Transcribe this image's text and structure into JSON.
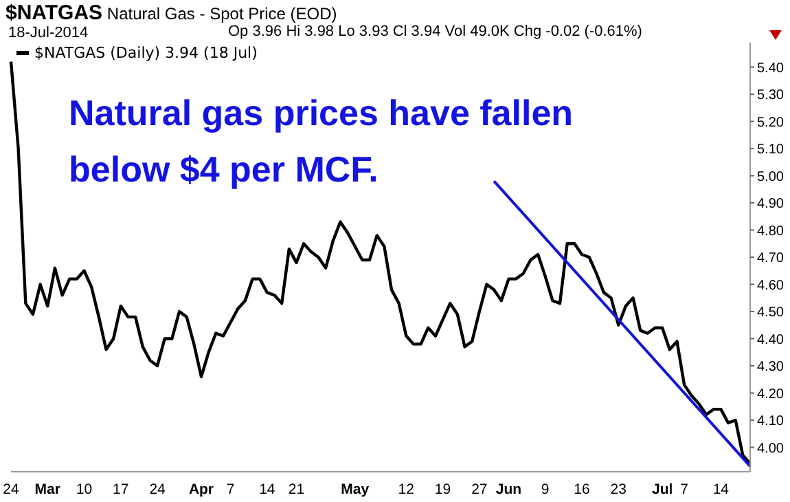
{
  "chart_data": {
    "type": "line",
    "title": "$NATGAS Natural Gas - Spot Price (EOD)",
    "subtitle": "18-Jul-2014",
    "annotations": [
      "Op 3.96 Hi 3.98 Lo 3.93 Cl 3.94 Vol 49.0K Chg -0.02 (-0.61%)",
      "Natural gas prices have fallen below $4 per MCF."
    ],
    "categories": [
      "24",
      null,
      null,
      null,
      null,
      "Mar",
      null,
      null,
      null,
      null,
      "10",
      null,
      null,
      null,
      null,
      "17",
      null,
      null,
      null,
      null,
      "24",
      null,
      null,
      null,
      null,
      null,
      "Apr",
      null,
      null,
      null,
      "7",
      null,
      null,
      null,
      null,
      "14",
      null,
      null,
      null,
      "21",
      null,
      null,
      null,
      null,
      null,
      null,
      null,
      "May",
      null,
      null,
      null,
      null,
      null,
      null,
      "12",
      null,
      null,
      null,
      null,
      "19",
      null,
      null,
      null,
      null,
      "27",
      null,
      null,
      null,
      "Jun",
      null,
      null,
      null,
      null,
      "9",
      null,
      null,
      null,
      null,
      "16",
      null,
      null,
      null,
      null,
      "23",
      null,
      null,
      null,
      null,
      null,
      "Jul",
      null,
      null,
      "7",
      null,
      null,
      null,
      null,
      "14",
      null,
      null,
      null,
      null
    ],
    "series": [
      {
        "name": "$NATGAS (Daily) 3.94 (18 Jul)",
        "color": "#000000",
        "values": [
          5.42,
          5.1,
          4.53,
          4.49,
          4.6,
          4.52,
          4.66,
          4.56,
          4.62,
          4.62,
          4.65,
          4.59,
          4.48,
          4.36,
          4.4,
          4.52,
          4.48,
          4.48,
          4.37,
          4.32,
          4.3,
          4.4,
          4.4,
          4.5,
          4.48,
          4.38,
          4.26,
          4.35,
          4.42,
          4.41,
          4.46,
          4.51,
          4.54,
          4.62,
          4.62,
          4.57,
          4.56,
          4.53,
          4.73,
          4.68,
          4.75,
          4.72,
          4.7,
          4.66,
          4.76,
          4.83,
          4.79,
          4.74,
          4.69,
          4.69,
          4.78,
          4.74,
          4.58,
          4.53,
          4.41,
          4.38,
          4.38,
          4.44,
          4.41,
          4.47,
          4.53,
          4.49,
          4.37,
          4.39,
          4.5,
          4.6,
          4.58,
          4.54,
          4.62,
          4.62,
          4.64,
          4.69,
          4.71,
          4.63,
          4.54,
          4.53,
          4.75,
          4.75,
          4.71,
          4.7,
          4.64,
          4.57,
          4.55,
          4.45,
          4.52,
          4.55,
          4.43,
          4.42,
          4.44,
          4.44,
          4.36,
          4.39,
          4.23,
          4.19,
          4.16,
          4.12,
          4.14,
          4.14,
          4.09,
          4.1,
          3.97,
          3.94
        ]
      },
      {
        "type": "line",
        "color": "#1414d2",
        "values": [
          null,
          null,
          null,
          null,
          null,
          null,
          null,
          null,
          null,
          null,
          null,
          null,
          null,
          null,
          null,
          null,
          null,
          null,
          null,
          null,
          null,
          null,
          null,
          null,
          null,
          null,
          null,
          null,
          null,
          null,
          null,
          null,
          null,
          null,
          null,
          null,
          null,
          null,
          null,
          null,
          null,
          null,
          null,
          null,
          null,
          null,
          null,
          null,
          null,
          null,
          null,
          null,
          null,
          null,
          null,
          null,
          null,
          null,
          null,
          null,
          null,
          null,
          null,
          null,
          null,
          null,
          4.98,
          null,
          null,
          null,
          null,
          null,
          null,
          null,
          null,
          null,
          null,
          null,
          null,
          null,
          null,
          null,
          null,
          null,
          null,
          null,
          null,
          null,
          null,
          null,
          null,
          null,
          null,
          null,
          null,
          null,
          null,
          null,
          null,
          null,
          null,
          3.93
        ]
      }
    ],
    "ylim": [
      3.91,
      5.49
    ],
    "yticks": [
      {
        "value": 4.0,
        "label": "4.00"
      },
      {
        "value": 4.1,
        "label": "4.10"
      },
      {
        "value": 4.2,
        "label": "4.20"
      },
      {
        "value": 4.3,
        "label": "4.30"
      },
      {
        "value": 4.4,
        "label": "4.40"
      },
      {
        "value": 4.5,
        "label": "4.50"
      },
      {
        "value": 4.6,
        "label": "4.60"
      },
      {
        "value": 4.7,
        "label": "4.70"
      },
      {
        "value": 4.8,
        "label": "4.80"
      },
      {
        "value": 4.9,
        "label": "4.90"
      },
      {
        "value": 5.0,
        "label": "5.00"
      },
      {
        "value": 5.1,
        "label": "5.10"
      },
      {
        "value": 5.2,
        "label": "5.20"
      },
      {
        "value": 5.3,
        "label": "5.30"
      },
      {
        "value": 5.4,
        "label": "5.40"
      }
    ],
    "grid": false,
    "legend": "top left",
    "marker": "none",
    "line_style": "solid"
  }
}
